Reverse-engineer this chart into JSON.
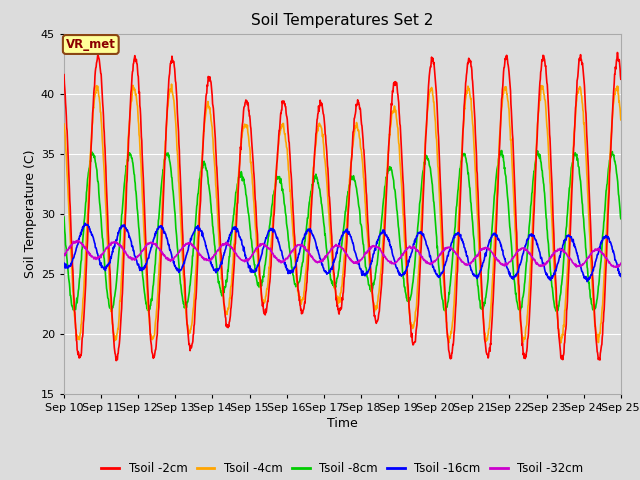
{
  "title": "Soil Temperatures Set 2",
  "xlabel": "Time",
  "ylabel": "Soil Temperature (C)",
  "ylim": [
    15,
    45
  ],
  "xlim_days": 15,
  "x_tick_labels": [
    "Sep 10",
    "Sep 11",
    "Sep 12",
    "Sep 13",
    "Sep 14",
    "Sep 15",
    "Sep 16",
    "Sep 17",
    "Sep 18",
    "Sep 19",
    "Sep 20",
    "Sep 21",
    "Sep 22",
    "Sep 23",
    "Sep 24",
    "Sep 25"
  ],
  "background_color": "#dcdcdc",
  "plot_bg_color": "#dcdcdc",
  "annotation_text": "VR_met",
  "annotation_box_facecolor": "#ffff99",
  "annotation_box_edgecolor": "#8B4513",
  "annotation_text_color": "#8B0000",
  "series_colors": {
    "Tsoil -2cm": "#ff0000",
    "Tsoil -4cm": "#ffa500",
    "Tsoil -8cm": "#00cc00",
    "Tsoil -16cm": "#0000ff",
    "Tsoil -32cm": "#cc00cc"
  },
  "legend_labels": [
    "Tsoil -2cm",
    "Tsoil -4cm",
    "Tsoil -8cm",
    "Tsoil -16cm",
    "Tsoil -32cm"
  ],
  "yticks": [
    15,
    20,
    25,
    30,
    35,
    40,
    45
  ],
  "grid_color": "#ffffff",
  "linewidth": 1.2
}
